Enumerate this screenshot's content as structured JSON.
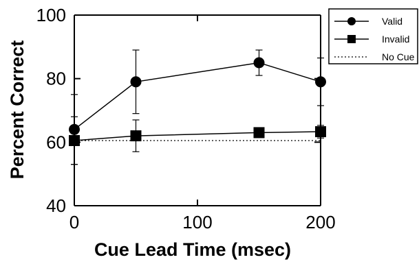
{
  "chart_data": {
    "type": "line",
    "xlabel": "Cue Lead Time (msec)",
    "ylabel": "Percent Correct",
    "xlim": [
      0,
      200
    ],
    "ylim": [
      40,
      100
    ],
    "xticks": [
      "0",
      "100",
      "200"
    ],
    "yticks": [
      "40",
      "60",
      "80",
      "100"
    ],
    "grid": false,
    "legend_position": "top-right",
    "series": [
      {
        "name": "Valid",
        "marker": "circle",
        "line": "solid",
        "x": [
          0,
          50,
          150,
          200
        ],
        "values": [
          64,
          79,
          85,
          79
        ],
        "error": [
          11,
          10,
          4,
          7.5
        ]
      },
      {
        "name": "Invalid",
        "marker": "square",
        "line": "solid",
        "x": [
          0,
          50,
          150,
          200
        ],
        "values": [
          60.5,
          62,
          63,
          63.3
        ],
        "error": [
          7.5,
          5,
          0.5,
          2
        ]
      },
      {
        "name": "No Cue",
        "marker": "none",
        "line": "dotted",
        "x": [
          0,
          200
        ],
        "values": [
          60.5,
          60.5
        ]
      }
    ],
    "colors": {
      "line": "#000000",
      "background": "#ffffff"
    }
  }
}
